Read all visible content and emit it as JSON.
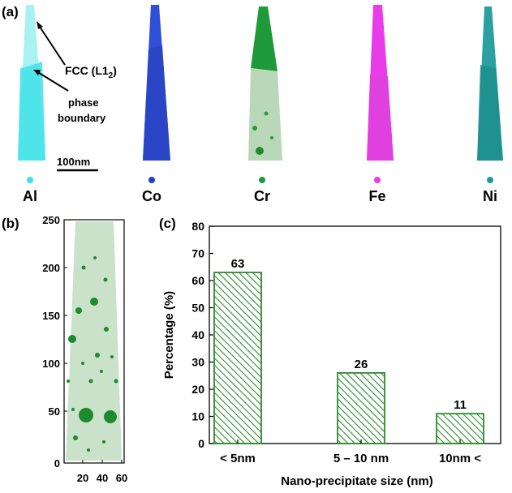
{
  "panels": {
    "a": {
      "label": "(a)",
      "annotations": {
        "phase_name": "FCC (L1",
        "phase_sub": "2",
        "phase_close": ")",
        "boundary_line1": "phase",
        "boundary_line2": "boundary",
        "scale_bar": "100nm"
      },
      "elements": [
        {
          "symbol": "Al",
          "color": "#40e0e8"
        },
        {
          "symbol": "Co",
          "color": "#1f3fc8"
        },
        {
          "symbol": "Cr",
          "color": "#1e9a3a"
        },
        {
          "symbol": "Fe",
          "color": "#e83ce8"
        },
        {
          "symbol": "Ni",
          "color": "#1f9a9a"
        }
      ]
    },
    "b": {
      "label": "(b)",
      "y_ticks": [
        "250",
        "200",
        "150",
        "100",
        "50",
        "0"
      ],
      "x_ticks": [
        "20",
        "40",
        "60"
      ],
      "color": "#1e7a30"
    },
    "c": {
      "label": "(c)"
    }
  },
  "chart_data": {
    "type": "bar",
    "categories": [
      "< 5nm",
      "5 – 10 nm",
      "10nm <"
    ],
    "values": [
      63,
      26,
      11
    ],
    "value_labels": [
      "63",
      "26",
      "11"
    ],
    "xlabel": "Nano-precipitate  size (nm)",
    "ylabel": "Percentage (%)",
    "ylim": [
      0,
      80
    ],
    "yticks": [
      0,
      10,
      20,
      30,
      40,
      50,
      60,
      70,
      80
    ],
    "bar_color": "#2e8b2e",
    "pattern": "diagonal-hatch",
    "grid": false
  }
}
